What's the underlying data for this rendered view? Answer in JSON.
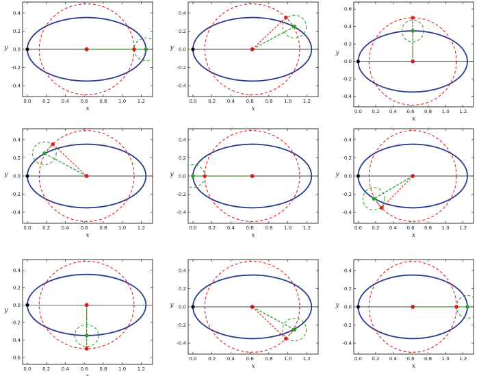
{
  "figure": {
    "background": "#ffffff",
    "colors": {
      "ellipse": "#2b3990",
      "red_circle": "#e41a1c",
      "green_circle": "#2ca02c",
      "axis_line": "#000000",
      "origin_point": "#000000"
    }
  },
  "chart_data": [
    {
      "type": "scatter",
      "xlabel": "x",
      "ylabel": "y",
      "xlim": [
        -0.05,
        1.32
      ],
      "ylim": [
        -0.52,
        0.52
      ],
      "xticks": [
        "0.0",
        "0.2",
        "0.4",
        "0.6",
        "0.8",
        "1.0",
        "1.2"
      ],
      "yticks": [
        "-0.4",
        "-0.2",
        "0.0",
        "0.2",
        "0.4"
      ],
      "ellipse": {
        "center": [
          0.625,
          0.0
        ],
        "semi_axes": [
          0.625,
          0.35
        ]
      },
      "red_circle": {
        "center": [
          0.625,
          0.0
        ],
        "radius": 0.5
      },
      "origin_point": [
        0.0,
        0.0
      ],
      "red_point": [
        1.125,
        0.0
      ],
      "green_point": [
        1.25,
        0.0
      ],
      "green_circle_radius": 0.125,
      "red_dashed_path": [
        [
          1.125,
          0.0
        ],
        [
          1.125,
          0.0
        ]
      ],
      "green_dashed_path": [
        [
          0.625,
          0.0
        ],
        [
          1.25,
          0.0
        ]
      ]
    },
    {
      "type": "scatter",
      "xlabel": "x",
      "ylabel": "y",
      "xlim": [
        -0.05,
        1.32
      ],
      "ylim": [
        -0.52,
        0.52
      ],
      "xticks": [
        "0.0",
        "0.2",
        "0.4",
        "0.6",
        "0.8",
        "1.0",
        "1.2"
      ],
      "yticks": [
        "-0.4",
        "-0.2",
        "0.0",
        "0.2",
        "0.4"
      ],
      "ellipse": {
        "center": [
          0.625,
          0.0
        ],
        "semi_axes": [
          0.625,
          0.35
        ]
      },
      "red_circle": {
        "center": [
          0.625,
          0.0
        ],
        "radius": 0.5
      },
      "origin_point": [
        0.0,
        0.0
      ],
      "red_point": [
        0.98,
        0.35
      ],
      "green_point": [
        1.07,
        0.25
      ],
      "green_circle_radius": 0.125,
      "red_dashed_path": [
        [
          0.625,
          0.0
        ],
        [
          0.98,
          0.35
        ]
      ],
      "green_dashed_path": [
        [
          0.625,
          0.0
        ],
        [
          1.07,
          0.25
        ]
      ]
    },
    {
      "type": "scatter",
      "xlabel": "x",
      "ylabel": "y",
      "xlim": [
        -0.05,
        1.32
      ],
      "ylim": [
        -0.52,
        0.68
      ],
      "xticks": [
        "0.0",
        "0.2",
        "0.4",
        "0.6",
        "0.8",
        "1.0",
        "1.2"
      ],
      "yticks": [
        "-0.4",
        "-0.2",
        "0.0",
        "0.2",
        "0.4",
        "0.6"
      ],
      "ellipse": {
        "center": [
          0.625,
          0.0
        ],
        "semi_axes": [
          0.625,
          0.35
        ]
      },
      "red_circle": {
        "center": [
          0.625,
          0.0
        ],
        "radius": 0.5
      },
      "origin_point": [
        0.0,
        0.0
      ],
      "red_point": [
        0.625,
        0.5
      ],
      "green_point": [
        0.625,
        0.35
      ],
      "green_circle_radius": 0.125,
      "red_dashed_path": [
        [
          0.625,
          0.0
        ],
        [
          0.625,
          0.5
        ]
      ],
      "green_dashed_path": [
        [
          0.625,
          0.0
        ],
        [
          0.625,
          0.35
        ]
      ]
    },
    {
      "type": "scatter",
      "xlabel": "x",
      "ylabel": "y",
      "xlim": [
        -0.05,
        1.32
      ],
      "ylim": [
        -0.52,
        0.52
      ],
      "xticks": [
        "0.0",
        "0.2",
        "0.4",
        "0.6",
        "0.8",
        "1.0",
        "1.2"
      ],
      "yticks": [
        "-0.4",
        "-0.2",
        "0.0",
        "0.2",
        "0.4"
      ],
      "ellipse": {
        "center": [
          0.625,
          0.0
        ],
        "semi_axes": [
          0.625,
          0.35
        ]
      },
      "red_circle": {
        "center": [
          0.625,
          0.0
        ],
        "radius": 0.5
      },
      "origin_point": [
        0.0,
        0.0
      ],
      "red_point": [
        0.27,
        0.35
      ],
      "green_point": [
        0.18,
        0.25
      ],
      "green_circle_radius": 0.125,
      "red_dashed_path": [
        [
          0.625,
          0.0
        ],
        [
          0.27,
          0.35
        ]
      ],
      "green_dashed_path": [
        [
          0.625,
          0.0
        ],
        [
          0.18,
          0.25
        ]
      ]
    },
    {
      "type": "scatter",
      "xlabel": "x",
      "ylabel": "y",
      "xlim": [
        -0.05,
        1.32
      ],
      "ylim": [
        -0.52,
        0.52
      ],
      "xticks": [
        "0.0",
        "0.2",
        "0.4",
        "0.6",
        "0.8",
        "1.0",
        "1.2"
      ],
      "yticks": [
        "-0.4",
        "-0.2",
        "0.0",
        "0.2",
        "0.4"
      ],
      "ellipse": {
        "center": [
          0.625,
          0.0
        ],
        "semi_axes": [
          0.625,
          0.35
        ]
      },
      "red_circle": {
        "center": [
          0.625,
          0.0
        ],
        "radius": 0.5
      },
      "origin_point": [
        0.0,
        0.0
      ],
      "red_point": [
        0.125,
        0.0
      ],
      "green_point": [
        0.0,
        0.0
      ],
      "green_circle_radius": 0.125,
      "red_dashed_path": [
        [
          0.625,
          0.0
        ],
        [
          0.125,
          0.0
        ]
      ],
      "green_dashed_path": [
        [
          0.625,
          0.0
        ],
        [
          0.0,
          0.0
        ]
      ]
    },
    {
      "type": "scatter",
      "xlabel": "x",
      "ylabel": "y",
      "xlim": [
        -0.05,
        1.32
      ],
      "ylim": [
        -0.52,
        0.52
      ],
      "xticks": [
        "0.0",
        "0.2",
        "0.4",
        "0.6",
        "0.8",
        "1.0",
        "1.2"
      ],
      "yticks": [
        "-0.4",
        "-0.2",
        "0.0",
        "0.2",
        "0.4"
      ],
      "ellipse": {
        "center": [
          0.625,
          0.0
        ],
        "semi_axes": [
          0.625,
          0.35
        ]
      },
      "red_circle": {
        "center": [
          0.625,
          0.0
        ],
        "radius": 0.5
      },
      "origin_point": [
        0.0,
        0.0
      ],
      "red_point": [
        0.27,
        -0.35
      ],
      "green_point": [
        0.18,
        -0.25
      ],
      "green_circle_radius": 0.125,
      "red_dashed_path": [
        [
          0.625,
          0.0
        ],
        [
          0.27,
          -0.35
        ]
      ],
      "green_dashed_path": [
        [
          0.625,
          0.0
        ],
        [
          0.18,
          -0.25
        ]
      ]
    },
    {
      "type": "scatter",
      "xlabel": "x",
      "ylabel": "y",
      "xlim": [
        -0.05,
        1.32
      ],
      "ylim": [
        -0.68,
        0.52
      ],
      "xticks": [
        "0.0",
        "0.2",
        "0.4",
        "0.6",
        "0.8",
        "1.0",
        "1.2"
      ],
      "yticks": [
        "-0.6",
        "-0.4",
        "-0.2",
        "0.0",
        "0.2",
        "0.4"
      ],
      "ellipse": {
        "center": [
          0.625,
          0.0
        ],
        "semi_axes": [
          0.625,
          0.35
        ]
      },
      "red_circle": {
        "center": [
          0.625,
          0.0
        ],
        "radius": 0.5
      },
      "origin_point": [
        0.0,
        0.0
      ],
      "red_point": [
        0.625,
        -0.5
      ],
      "green_point": [
        0.625,
        -0.35
      ],
      "green_circle_radius": 0.125,
      "red_dashed_path": [
        [
          0.625,
          0.0
        ],
        [
          0.625,
          -0.5
        ]
      ],
      "green_dashed_path": [
        [
          0.625,
          0.0
        ],
        [
          0.625,
          -0.35
        ]
      ]
    },
    {
      "type": "scatter",
      "xlabel": "x",
      "ylabel": "y",
      "xlim": [
        -0.05,
        1.32
      ],
      "ylim": [
        -0.52,
        0.52
      ],
      "xticks": [
        "0.0",
        "0.2",
        "0.4",
        "0.6",
        "0.8",
        "1.0",
        "1.2"
      ],
      "yticks": [
        "-0.4",
        "-0.2",
        "0.0",
        "0.2",
        "0.4"
      ],
      "ellipse": {
        "center": [
          0.625,
          0.0
        ],
        "semi_axes": [
          0.625,
          0.35
        ]
      },
      "red_circle": {
        "center": [
          0.625,
          0.0
        ],
        "radius": 0.5
      },
      "origin_point": [
        0.0,
        0.0
      ],
      "red_point": [
        0.98,
        -0.35
      ],
      "green_point": [
        1.07,
        -0.25
      ],
      "green_circle_radius": 0.125,
      "red_dashed_path": [
        [
          0.625,
          0.0
        ],
        [
          0.98,
          -0.35
        ]
      ],
      "green_dashed_path": [
        [
          0.625,
          0.0
        ],
        [
          1.07,
          -0.25
        ]
      ]
    },
    {
      "type": "scatter",
      "xlabel": "x",
      "ylabel": "y",
      "xlim": [
        -0.05,
        1.32
      ],
      "ylim": [
        -0.52,
        0.52
      ],
      "xticks": [
        "0.0",
        "0.2",
        "0.4",
        "0.6",
        "0.8",
        "1.0",
        "1.2"
      ],
      "yticks": [
        "-0.4",
        "-0.2",
        "0.0",
        "0.2",
        "0.4"
      ],
      "ellipse": {
        "center": [
          0.625,
          0.0
        ],
        "semi_axes": [
          0.625,
          0.35
        ]
      },
      "red_circle": {
        "center": [
          0.625,
          0.0
        ],
        "radius": 0.5
      },
      "origin_point": [
        0.0,
        0.0
      ],
      "red_point": [
        1.125,
        0.0
      ],
      "green_point": [
        1.25,
        0.0
      ],
      "green_circle_radius": 0.125,
      "red_dashed_path": [
        [
          1.125,
          0.0
        ],
        [
          1.125,
          0.0
        ]
      ],
      "green_dashed_path": [
        [
          0.625,
          0.0
        ],
        [
          1.25,
          0.0
        ]
      ]
    }
  ]
}
